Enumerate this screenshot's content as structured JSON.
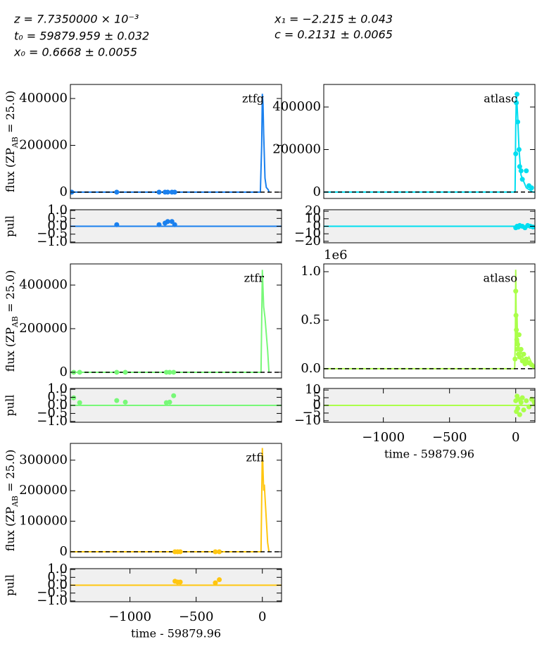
{
  "annotations": [
    "z = 7.7350000 × 10⁻³",
    "t₀ = 59879.959 ± 0.032",
    "x₀ = 0.6668 ± 0.0055",
    "x₁ = −2.215 ± 0.043",
    "c = 0.2131 ± 0.0065"
  ],
  "chart_data": [
    {
      "type": "lightcurve",
      "label": "ztfg",
      "ylabel": [
        "flux (ZP",
        "AB",
        " = 25.0)"
      ],
      "color": "#1a80ee",
      "xlim": [
        -1450,
        145
      ],
      "ylim": [
        -27000,
        460000
      ],
      "yticks": [
        0,
        200000,
        400000
      ],
      "points": {
        "x": [
          -1440,
          -1100,
          -780,
          -735,
          -715,
          -683,
          -662
        ],
        "y": [
          0,
          0,
          0,
          0,
          0,
          0,
          0
        ]
      },
      "model": {
        "x": [
          -1450,
          -15,
          -5,
          0,
          5,
          10,
          20,
          30,
          45,
          50
        ],
        "y": [
          0,
          0,
          200000,
          420000,
          380000,
          250000,
          60000,
          20000,
          10000,
          0
        ]
      }
    },
    {
      "type": "pull",
      "ylabel": "pull",
      "color": "#1a80ee",
      "xlim": [
        -1450,
        145
      ],
      "ylim": [
        -1.05,
        1.05
      ],
      "yticks": [
        {
          "value": 1,
          "label": "1.0"
        },
        0.5,
        {
          "value": 0,
          "label": "0.0"
        },
        {
          "value": -0.5,
          "label": "−0.5"
        },
        {
          "value": -1,
          "label": "−1.0"
        }
      ],
      "points": {
        "x": [
          -1100,
          -780,
          -735,
          -715,
          -683,
          -662
        ],
        "y": [
          0.1,
          0.1,
          0.2,
          0.3,
          0.3,
          0.1
        ]
      }
    },
    {
      "type": "lightcurve",
      "label": "atlasc",
      "color": "#00def0",
      "xlim": [
        -1450,
        145
      ],
      "ylim": [
        -30000,
        506000
      ],
      "yticks": [
        0,
        200000,
        400000
      ],
      "points": {
        "x": [
          0,
          5,
          10,
          15,
          25,
          30,
          40,
          50,
          80,
          100,
          120
        ],
        "y": [
          180000,
          420000,
          460000,
          330000,
          200000,
          120000,
          100000,
          60000,
          100000,
          30000,
          20000
        ]
      },
      "model": {
        "x": [
          -1450,
          -5,
          0,
          5,
          15,
          25,
          40,
          80,
          130,
          145
        ],
        "y": [
          0,
          0,
          300000,
          470000,
          350000,
          200000,
          80000,
          20000,
          0,
          0
        ]
      }
    },
    {
      "type": "pull",
      "color": "#00def0",
      "xlim": [
        -1450,
        145
      ],
      "ylim": [
        -22,
        22
      ],
      "yticks": [
        20,
        10,
        0,
        {
          "value": -10,
          "label": "−10"
        },
        {
          "value": -20,
          "label": "−20"
        }
      ],
      "points": {
        "x": [
          0,
          10,
          20,
          30,
          50,
          70,
          90,
          110,
          130
        ],
        "y": [
          -2,
          0,
          -1,
          1,
          0,
          -2,
          1,
          0,
          -1
        ]
      }
    },
    {
      "type": "lightcurve",
      "label": "ztfr",
      "ylabel": [
        "flux (ZP",
        "AB",
        " = 25.0)"
      ],
      "color": "#78f878",
      "xlim": [
        -1450,
        145
      ],
      "ylim": [
        -26000,
        497000
      ],
      "yticks": [
        0,
        200000,
        400000
      ],
      "points": {
        "x": [
          -1425,
          -1380,
          -1100,
          -1035,
          -725,
          -700,
          -670
        ],
        "y": [
          0,
          0,
          0,
          0,
          0,
          0,
          0
        ]
      },
      "model": {
        "x": [
          -1450,
          -10,
          0,
          10,
          20,
          40,
          50
        ],
        "y": [
          0,
          0,
          470000,
          300000,
          250000,
          100000,
          0
        ]
      }
    },
    {
      "type": "pull",
      "ylabel": "pull",
      "color": "#78f878",
      "xlim": [
        -1450,
        145
      ],
      "ylim": [
        -1.05,
        1.05
      ],
      "yticks": [
        {
          "value": 1,
          "label": "1.0"
        },
        0.5,
        {
          "value": 0,
          "label": "0.0"
        },
        {
          "value": -0.5,
          "label": "−0.5"
        },
        {
          "value": -1,
          "label": "−1.0"
        }
      ],
      "points": {
        "x": [
          -1425,
          -1380,
          -1100,
          -1035,
          -725,
          -700,
          -670
        ],
        "y": [
          0.47,
          0.17,
          0.3,
          0.2,
          0.17,
          0.2,
          0.6
        ]
      }
    },
    {
      "type": "lightcurve",
      "label": "atlaso",
      "color": "#aaff4a",
      "offset_label": "1e6",
      "xlim": [
        -1450,
        145
      ],
      "ylim": [
        -95000,
        1080000
      ],
      "yticks": [
        {
          "value": 0,
          "label": "0.0"
        },
        {
          "value": 500000,
          "label": "0.5"
        },
        {
          "value": 1000000,
          "label": "1.0"
        }
      ],
      "points": {
        "x": [
          -5,
          0,
          2,
          5,
          8,
          10,
          15,
          20,
          25,
          30,
          40,
          50,
          60,
          70,
          80,
          100,
          120,
          140
        ],
        "y": [
          100000,
          800000,
          550000,
          400000,
          300000,
          200000,
          250000,
          150000,
          350000,
          120000,
          200000,
          80000,
          150000,
          50000,
          100000,
          60000,
          40000,
          20000
        ]
      },
      "model": {
        "x": [
          -1450,
          -8,
          -3,
          0,
          3,
          6,
          10,
          15,
          20,
          30,
          40,
          60,
          80,
          100,
          130,
          145
        ],
        "y": [
          0,
          0,
          300000,
          1020000,
          600000,
          250000,
          550000,
          200000,
          300000,
          120000,
          180000,
          90000,
          60000,
          120000,
          30000,
          20000
        ]
      }
    },
    {
      "type": "pull",
      "color": "#aaff4a",
      "xlim": [
        -1450,
        145
      ],
      "ylim": [
        -11,
        11
      ],
      "yticks": [
        10,
        5,
        0,
        {
          "value": -5,
          "label": "−5"
        },
        {
          "value": -10,
          "label": "−10"
        }
      ],
      "xticks": [
        {
          "value": -1000,
          "label": "−1000"
        },
        {
          "value": -500,
          "label": "−500"
        },
        0
      ],
      "xlabel": "time - 59879.96",
      "points": {
        "x": [
          0,
          5,
          10,
          15,
          20,
          30,
          40,
          50,
          60,
          80,
          100,
          120,
          140
        ],
        "y": [
          3,
          -4,
          6,
          -2,
          4,
          -6,
          2,
          5,
          -3,
          3,
          -1,
          4,
          2
        ]
      }
    },
    {
      "type": "lightcurve",
      "label": "ztfi",
      "ylabel": [
        "flux (ZP",
        "AB",
        " = 25.0)"
      ],
      "color": "#ffc610",
      "xlim": [
        -1450,
        145
      ],
      "ylim": [
        -18500,
        355000
      ],
      "yticks": [
        0,
        100000,
        200000,
        300000
      ],
      "points": {
        "x": [
          -660,
          -640,
          -620,
          -355,
          -325
        ],
        "y": [
          0,
          0,
          0,
          0,
          0
        ]
      },
      "model": {
        "x": [
          -1450,
          -10,
          0,
          10,
          15,
          20,
          40,
          50
        ],
        "y": [
          0,
          0,
          340000,
          200000,
          220000,
          180000,
          30000,
          0
        ]
      }
    },
    {
      "type": "pull",
      "ylabel": "pull",
      "color": "#ffc610",
      "xlim": [
        -1450,
        145
      ],
      "ylim": [
        -1.05,
        1.05
      ],
      "yticks": [
        {
          "value": 1,
          "label": "1.0"
        },
        0.5,
        {
          "value": 0,
          "label": "0.0"
        },
        {
          "value": -0.5,
          "label": "−0.5"
        },
        {
          "value": -1,
          "label": "−1.0"
        }
      ],
      "xticks": [
        {
          "value": -1000,
          "label": "−1000"
        },
        {
          "value": -500,
          "label": "−500"
        },
        0
      ],
      "xlabel": "time - 59879.96",
      "points": {
        "x": [
          -660,
          -640,
          -620,
          -355,
          -325
        ],
        "y": [
          0.25,
          0.2,
          0.2,
          0.15,
          0.35
        ]
      }
    }
  ]
}
